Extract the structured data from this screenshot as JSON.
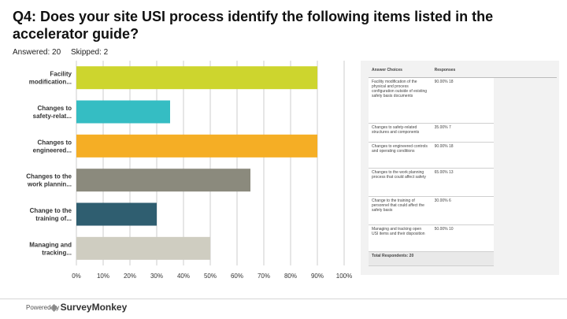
{
  "title": "Q4: Does your site USI process identify the following items listed in the accelerator guide?",
  "answered": "Answered: 20",
  "skipped": "Skipped: 2",
  "footer": {
    "powered_by": "Powered by",
    "brand": "SurveyMonkey"
  },
  "colors": {
    "grid": "#cccccc",
    "plot_bg": "#ffffff"
  },
  "chart_data": {
    "type": "bar",
    "orientation": "horizontal",
    "categories": [
      [
        "Facility",
        "modification..."
      ],
      [
        "Changes to",
        "safety-relat..."
      ],
      [
        "Changes to",
        "engineered..."
      ],
      [
        "Changes to the",
        "work plannin..."
      ],
      [
        "Change to the",
        "training of..."
      ],
      [
        "Managing and",
        "tracking..."
      ]
    ],
    "values": [
      90,
      35,
      90,
      65,
      30,
      50
    ],
    "colors": [
      "#cdd52e",
      "#35bdc3",
      "#f5ae25",
      "#8b8a7d",
      "#2f5e70",
      "#cfcdc1"
    ],
    "xlim": [
      0,
      100
    ],
    "xticks": [
      "0%",
      "10%",
      "20%",
      "30%",
      "40%",
      "50%",
      "60%",
      "70%",
      "80%",
      "90%",
      "100%"
    ],
    "grid": true
  },
  "table": {
    "headers": [
      "Answer Choices",
      "Responses"
    ],
    "rows": [
      {
        "choice": "Facility modification of the physical and process configuration outside of existing safety basis documents",
        "pct": "90.00%",
        "count": "18"
      },
      {
        "choice": "Changes to safety-related structures and components",
        "pct": "35.00%",
        "count": "7"
      },
      {
        "choice": "Changes to engineered controls and operating conditions",
        "pct": "90.00%",
        "count": "18"
      },
      {
        "choice": "Changes to the work planning process that could affect safety",
        "pct": "65.00%",
        "count": "13"
      },
      {
        "choice": "Change to the training of personnel that could affect the safety basis",
        "pct": "30.00%",
        "count": "6"
      },
      {
        "choice": "Managing and tracking open USI items and their disposition",
        "pct": "50.00%",
        "count": "10"
      }
    ],
    "total_label": "Total Respondents: 20"
  }
}
